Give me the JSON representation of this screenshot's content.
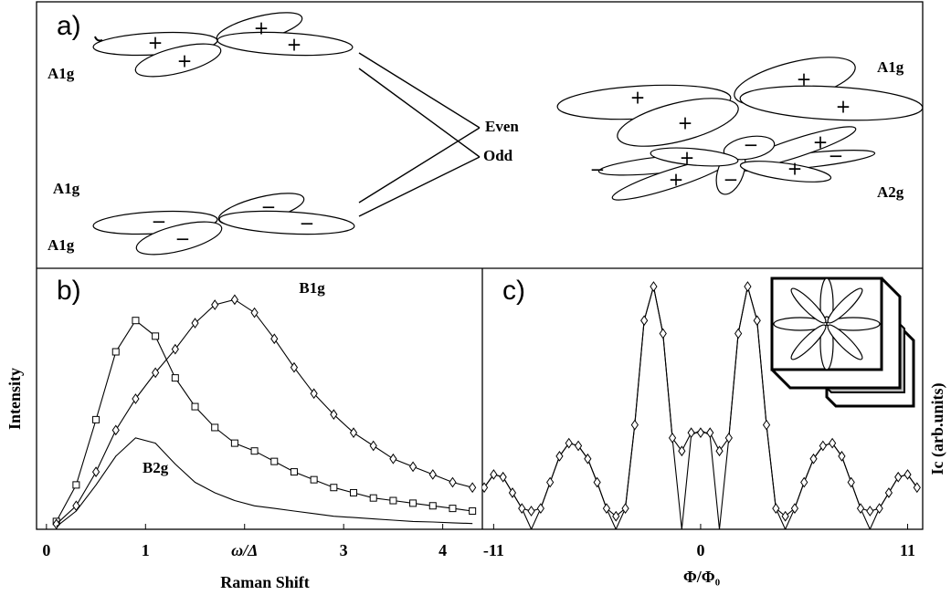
{
  "diagram": {
    "label": "a)",
    "top_label": "A1g",
    "bottom_label": "A1g",
    "right_top_label": "A1g",
    "right_bottom_label": "A2g",
    "even": "Even",
    "odd": "Odd",
    "top_signs": [
      "+",
      "+",
      "+",
      "+"
    ],
    "bottom_signs": [
      "−",
      "−",
      "−",
      "−"
    ],
    "right_top_signs": [
      "+",
      "+",
      "+",
      "+"
    ],
    "right_bottom_signs": [
      "−",
      "+",
      "+",
      "−",
      "+",
      "−",
      "+",
      "−"
    ]
  },
  "chart_data": [
    {
      "type": "line",
      "label": "b)",
      "x_label": "Raman Shift",
      "y_label": "Intensity",
      "xlim": [
        -0.1,
        4.4
      ],
      "ylim": [
        0,
        1
      ],
      "xticks": [
        0,
        1,
        {
          "value": 2,
          "label": "ω/Δ"
        },
        3,
        4
      ],
      "x": [
        0.1,
        0.3,
        0.5,
        0.7,
        0.9,
        1.1,
        1.3,
        1.5,
        1.7,
        1.9,
        2.1,
        2.3,
        2.5,
        2.7,
        2.9,
        3.1,
        3.3,
        3.5,
        3.7,
        3.9,
        4.1,
        4.3
      ],
      "series": [
        {
          "name": "A1g",
          "color": "#000000",
          "marker": "square",
          "values": [
            0.03,
            0.17,
            0.42,
            0.68,
            0.8,
            0.74,
            0.58,
            0.47,
            0.39,
            0.33,
            0.3,
            0.26,
            0.22,
            0.19,
            0.16,
            0.14,
            0.12,
            0.11,
            0.1,
            0.09,
            0.08,
            0.07
          ]
        },
        {
          "name": "B1g",
          "color": "#000000",
          "marker": "diamond",
          "values": [
            0.02,
            0.09,
            0.22,
            0.38,
            0.5,
            0.6,
            0.69,
            0.79,
            0.86,
            0.88,
            0.83,
            0.73,
            0.62,
            0.52,
            0.44,
            0.37,
            0.32,
            0.27,
            0.24,
            0.21,
            0.18,
            0.16
          ]
        },
        {
          "name": "B2g",
          "color": "#000000",
          "marker": "none",
          "values": [
            0.01,
            0.07,
            0.17,
            0.28,
            0.35,
            0.33,
            0.25,
            0.18,
            0.14,
            0.11,
            0.09,
            0.08,
            0.07,
            0.06,
            0.05,
            0.045,
            0.04,
            0.035,
            0.03,
            0.028,
            0.025,
            0.022
          ]
        }
      ]
    },
    {
      "type": "line",
      "label": "c)",
      "x_label": "Φ/Φ₀",
      "y_label": "Ic (arb.units)",
      "xlim": [
        -11.6,
        11.8
      ],
      "ylim": [
        0,
        1
      ],
      "xticks": [
        -11,
        0,
        11
      ],
      "x": [
        -11.5,
        -11,
        -10.5,
        -10,
        -9.5,
        -9,
        -8.5,
        -8,
        -7.5,
        -7,
        -6.5,
        -6,
        -5.5,
        -5,
        -4.5,
        -4,
        -3.5,
        -3,
        -2.5,
        -2,
        -1.5,
        -1,
        -0.5,
        0,
        0.5,
        1,
        1.5,
        2,
        2.5,
        3,
        3.5,
        4,
        4.5,
        5,
        5.5,
        6,
        6.5,
        7,
        7.5,
        8,
        8.5,
        9,
        9.5,
        10,
        10.5,
        11,
        11.5
      ],
      "series": [
        {
          "color": "#000000",
          "marker": "none",
          "values": [
            0.16,
            0.21,
            0.2,
            0.14,
            0.08,
            0.0,
            0.08,
            0.18,
            0.28,
            0.33,
            0.32,
            0.27,
            0.18,
            0.08,
            0.0,
            0.08,
            0.4,
            0.8,
            0.93,
            0.75,
            0.35,
            0.0,
            0.36,
            0.38,
            0.36,
            0.0,
            0.35,
            0.75,
            0.93,
            0.8,
            0.4,
            0.08,
            0.0,
            0.08,
            0.18,
            0.27,
            0.32,
            0.33,
            0.28,
            0.18,
            0.08,
            0.0,
            0.08,
            0.14,
            0.2,
            0.21,
            0.16
          ]
        },
        {
          "color": "#000000",
          "marker": "diamond",
          "values": [
            0.16,
            0.21,
            0.2,
            0.14,
            0.08,
            0.07,
            0.08,
            0.18,
            0.28,
            0.33,
            0.32,
            0.27,
            0.18,
            0.08,
            0.05,
            0.08,
            0.4,
            0.8,
            0.93,
            0.75,
            0.35,
            0.3,
            0.37,
            0.37,
            0.37,
            0.3,
            0.35,
            0.75,
            0.93,
            0.8,
            0.4,
            0.08,
            0.05,
            0.08,
            0.18,
            0.27,
            0.32,
            0.33,
            0.28,
            0.18,
            0.08,
            0.07,
            0.08,
            0.14,
            0.2,
            0.21,
            0.16
          ]
        }
      ]
    }
  ]
}
